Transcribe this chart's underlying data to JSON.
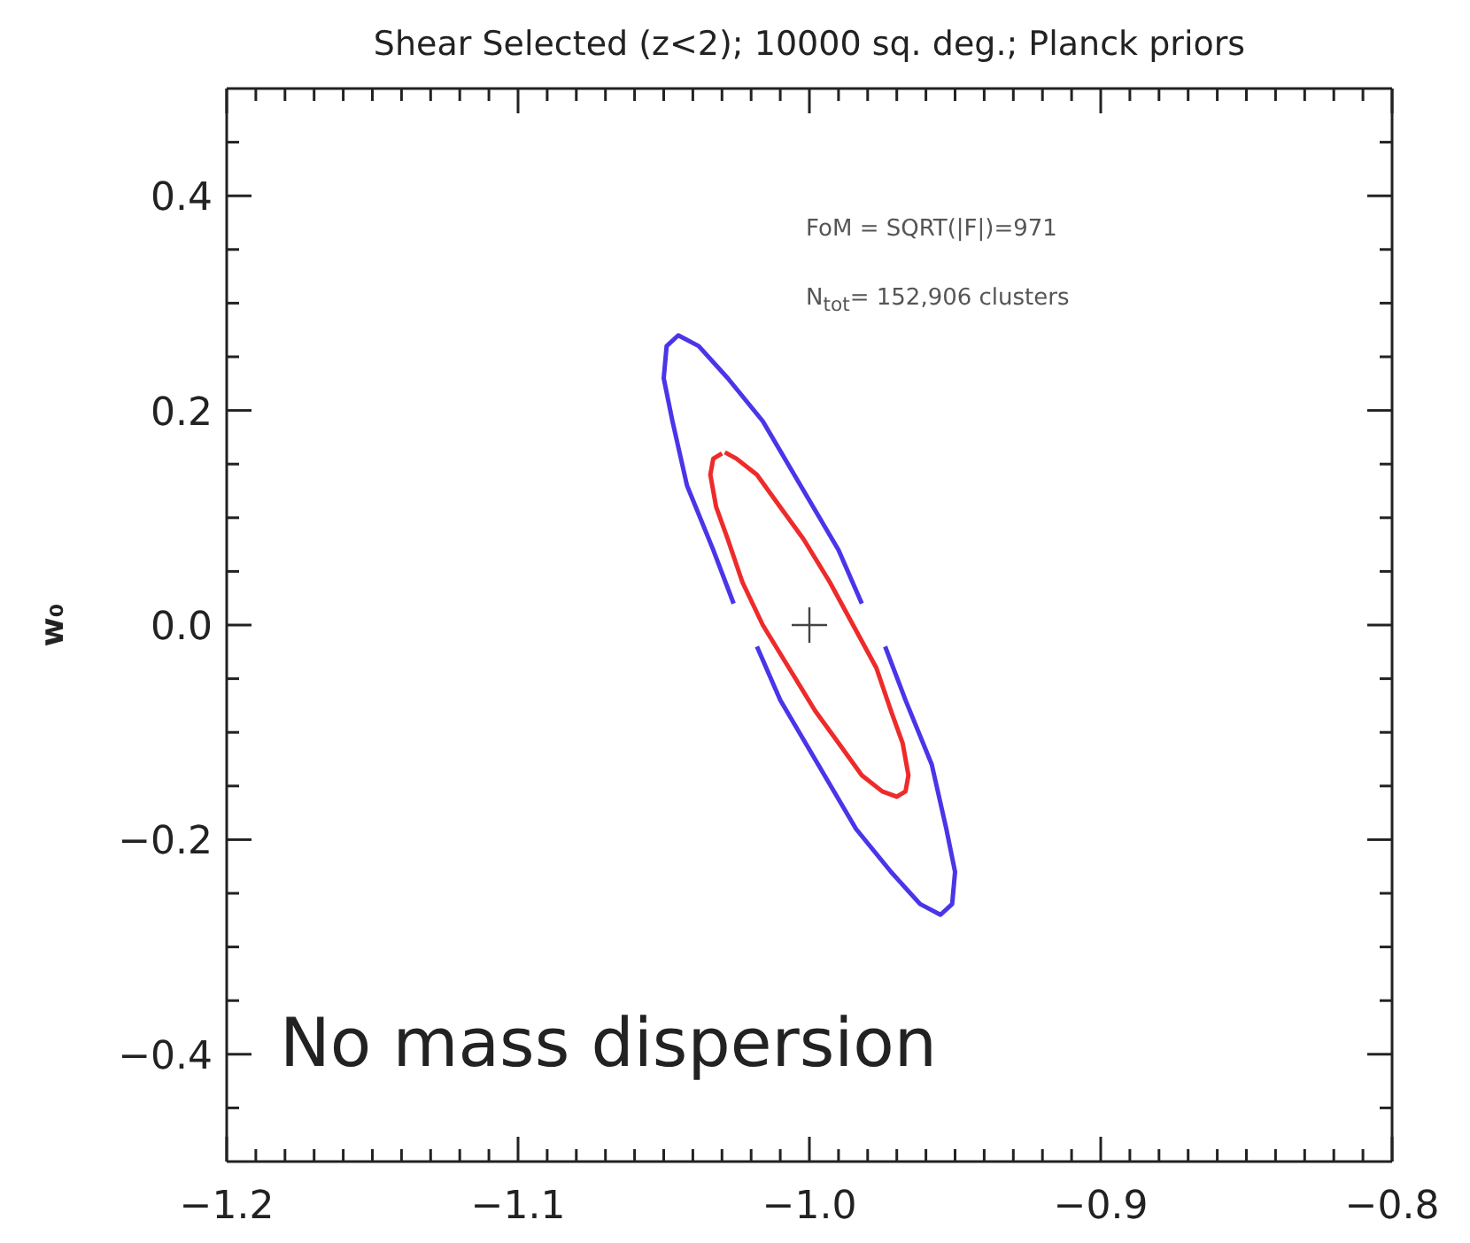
{
  "chart_data": {
    "type": "line",
    "title": "Shear Selected (z<2); 10000 sq. deg.; Planck priors",
    "ylabel": "w₀",
    "marker": "none",
    "annotations": [
      "FoM = SQRT(|F|)=971",
      "N$_{tot}$= 152,906 clusters",
      "No mass dispersion"
    ],
    "xlim": [
      -1.2,
      -0.8
    ],
    "ylim": [
      -0.5,
      0.5
    ],
    "xticks": [
      {
        "value": -1.2,
        "label": "−1.2"
      },
      {
        "value": -1.19,
        "label": null
      },
      {
        "value": -1.18,
        "label": null
      },
      {
        "value": -1.17,
        "label": null
      },
      {
        "value": -1.16,
        "label": null
      },
      {
        "value": -1.15,
        "label": null
      },
      {
        "value": -1.14,
        "label": null
      },
      {
        "value": -1.13,
        "label": null
      },
      {
        "value": -1.12,
        "label": null
      },
      {
        "value": -1.11,
        "label": null
      },
      {
        "value": -1.1,
        "label": "−1.1"
      },
      {
        "value": -1.09,
        "label": null
      },
      {
        "value": -1.08,
        "label": null
      },
      {
        "value": -1.07,
        "label": null
      },
      {
        "value": -1.06,
        "label": null
      },
      {
        "value": -1.05,
        "label": null
      },
      {
        "value": -1.04,
        "label": null
      },
      {
        "value": -1.03,
        "label": null
      },
      {
        "value": -1.02,
        "label": null
      },
      {
        "value": -1.01,
        "label": null
      },
      {
        "value": -1.0,
        "label": "−1.0"
      },
      {
        "value": -0.99,
        "label": null
      },
      {
        "value": -0.98,
        "label": null
      },
      {
        "value": -0.97,
        "label": null
      },
      {
        "value": -0.96,
        "label": null
      },
      {
        "value": -0.95,
        "label": null
      },
      {
        "value": -0.94,
        "label": null
      },
      {
        "value": -0.93,
        "label": null
      },
      {
        "value": -0.92,
        "label": null
      },
      {
        "value": -0.91,
        "label": null
      },
      {
        "value": -0.9,
        "label": "−0.9"
      },
      {
        "value": -0.89,
        "label": null
      },
      {
        "value": -0.88,
        "label": null
      },
      {
        "value": -0.87,
        "label": null
      },
      {
        "value": -0.86,
        "label": null
      },
      {
        "value": -0.85,
        "label": null
      },
      {
        "value": -0.84,
        "label": null
      },
      {
        "value": -0.83,
        "label": null
      },
      {
        "value": -0.82,
        "label": null
      },
      {
        "value": -0.81,
        "label": null
      },
      {
        "value": -0.8,
        "label": "−0.8"
      }
    ],
    "yticks": [
      {
        "value": -0.45,
        "label": null
      },
      {
        "value": -0.4,
        "label": "−0.4"
      },
      {
        "value": -0.35,
        "label": null
      },
      {
        "value": -0.3,
        "label": null
      },
      {
        "value": -0.25,
        "label": null
      },
      {
        "value": -0.2,
        "label": "−0.2"
      },
      {
        "value": -0.15,
        "label": null
      },
      {
        "value": -0.1,
        "label": null
      },
      {
        "value": -0.05,
        "label": null
      },
      {
        "value": 0,
        "label": "0.0"
      },
      {
        "value": 0.05,
        "label": null
      },
      {
        "value": 0.1,
        "label": null
      },
      {
        "value": 0.15,
        "label": null
      },
      {
        "value": 0.2,
        "label": "0.2"
      },
      {
        "value": 0.25,
        "label": null
      },
      {
        "value": 0.3,
        "label": null
      },
      {
        "value": 0.35,
        "label": null
      },
      {
        "value": 0.4,
        "label": "0.4"
      },
      {
        "value": 0.45,
        "label": null
      }
    ],
    "series": [
      {
        "type": "line",
        "color": "#4a35e8",
        "x": [
          -0.982,
          -0.99,
          -1.003,
          -1.016,
          -1.028,
          -1.038,
          -1.045,
          -1.049,
          -1.05,
          -1.047,
          -1.042,
          -1.033,
          -1.026,
          null,
          -1.018,
          -1.01,
          -0.997,
          -0.984,
          -0.972,
          -0.962,
          -0.955,
          -0.951,
          -0.95,
          -0.953,
          -0.958,
          -0.967,
          -0.974
        ],
        "values": [
          0.02,
          0.07,
          0.13,
          0.19,
          0.23,
          0.26,
          0.27,
          0.26,
          0.23,
          0.19,
          0.13,
          0.07,
          0.02,
          null,
          -0.02,
          -0.07,
          -0.13,
          -0.19,
          -0.23,
          -0.26,
          -0.27,
          -0.26,
          -0.23,
          -0.19,
          -0.13,
          -0.07,
          -0.02
        ]
      },
      {
        "type": "line",
        "color": "#ee2b2b",
        "x": [
          -1.03,
          -1.033,
          -1.034,
          -1.032,
          -1.028,
          -1.023,
          -1.016,
          -1.007,
          -0.998,
          -0.99,
          -0.982,
          -0.975,
          -0.97,
          -0.967,
          -0.966,
          -0.968,
          -0.972,
          -0.977,
          -0.985,
          -0.993,
          -1.002,
          -1.01,
          -1.018,
          -1.025,
          -1.029
        ],
        "values": [
          0.16,
          0.155,
          0.14,
          0.11,
          0.08,
          0.04,
          0,
          -0.04,
          -0.08,
          -0.11,
          -0.14,
          -0.155,
          -0.16,
          -0.155,
          -0.14,
          -0.11,
          -0.08,
          -0.04,
          0,
          0.04,
          0.08,
          0.11,
          0.14,
          0.155,
          0.161
        ]
      },
      {
        "type": "scatter",
        "color": "#444444",
        "marker": "cross",
        "x": [
          -1.0
        ],
        "values": [
          0
        ]
      }
    ]
  }
}
